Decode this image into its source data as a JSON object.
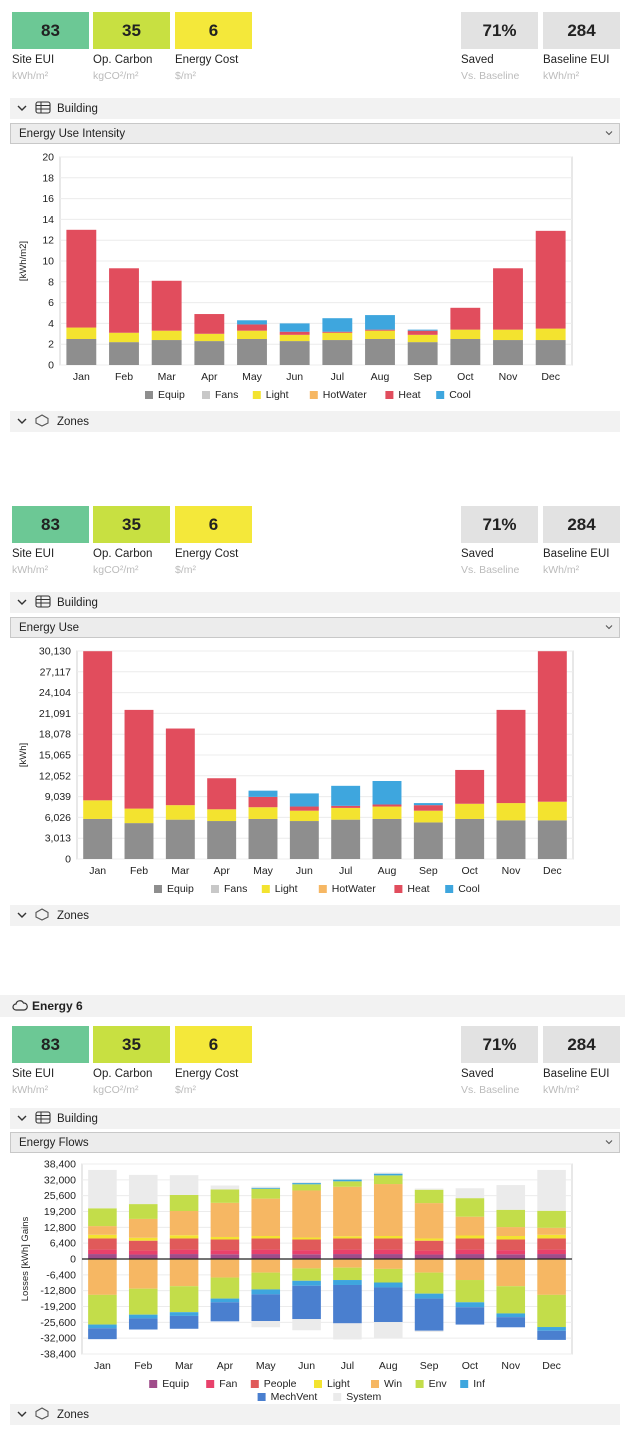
{
  "energy_header": {
    "title": "Energy 6"
  },
  "metrics": [
    {
      "value": "83",
      "label": "Site EUI",
      "unit": "kWh/m²",
      "color": "#6cc895"
    },
    {
      "value": "35",
      "label": "Op. Carbon",
      "unit": "kgCO²/m²",
      "color": "#c8e041"
    },
    {
      "value": "6",
      "label": "Energy Cost",
      "unit": "$/m²",
      "color": "#f4e83a"
    },
    {
      "value": "71%",
      "label": "Saved",
      "unit": "Vs. Baseline",
      "color": "#e2e2e2"
    },
    {
      "value": "284",
      "label": "Baseline EUI",
      "unit": "kWh/m²",
      "color": "#e2e2e2"
    }
  ],
  "building_label": "Building",
  "zones_label": "Zones",
  "colors": {
    "Equip": "#8e8e8e",
    "Fans": "#c8c8c8",
    "Light": "#f3e32f",
    "HotWater": "#f6b763",
    "Heat": "#e14d5d",
    "Cool": "#3ea6de",
    "Fan": "#e8416b",
    "People": "#e05a5a",
    "Win": "#f6b763",
    "Env": "#c3dd4a",
    "Inf": "#3ea6de",
    "MechVent": "#4a7fcf",
    "System": "#ebebeb",
    "EquipFlow": "#a04c8a"
  },
  "panels": [
    {
      "dropdown": "Energy Use Intensity"
    },
    {
      "dropdown": "Energy Use"
    },
    {
      "dropdown": "Energy Flows"
    }
  ],
  "chart_data": [
    {
      "type": "bar",
      "title": "Energy Use Intensity",
      "ylabel": "[kWh/m2]",
      "ylim": [
        0,
        20
      ],
      "yticks": [
        "0",
        "2",
        "4",
        "6",
        "8",
        "10",
        "12",
        "14",
        "16",
        "18",
        "20"
      ],
      "categories": [
        "Jan",
        "Feb",
        "Mar",
        "Apr",
        "May",
        "Jun",
        "Jul",
        "Aug",
        "Sep",
        "Oct",
        "Nov",
        "Dec"
      ],
      "legend": [
        "Equip",
        "Fans",
        "Light",
        "HotWater",
        "Heat",
        "Cool"
      ],
      "series": [
        {
          "name": "Equip",
          "values": [
            2.5,
            2.2,
            2.4,
            2.3,
            2.5,
            2.3,
            2.4,
            2.5,
            2.2,
            2.5,
            2.4,
            2.4
          ]
        },
        {
          "name": "Light",
          "values": [
            1.1,
            0.9,
            0.9,
            0.7,
            0.8,
            0.6,
            0.7,
            0.8,
            0.7,
            0.9,
            1.0,
            1.1
          ]
        },
        {
          "name": "Heat",
          "values": [
            9.4,
            6.2,
            4.8,
            1.9,
            0.6,
            0.3,
            0.1,
            0.1,
            0.4,
            2.1,
            5.9,
            9.4
          ]
        },
        {
          "name": "Cool",
          "values": [
            0,
            0,
            0,
            0,
            0.4,
            0.8,
            1.3,
            1.4,
            0.1,
            0,
            0,
            0
          ]
        }
      ]
    },
    {
      "type": "bar",
      "title": "Energy Use",
      "ylabel": "[kWh]",
      "ylim": [
        0,
        30130
      ],
      "yticks": [
        "0",
        "3,013",
        "6,026",
        "9,039",
        "12,052",
        "15,065",
        "18,078",
        "21,091",
        "24,104",
        "27,117",
        "30,130"
      ],
      "categories": [
        "Jan",
        "Feb",
        "Mar",
        "Apr",
        "May",
        "Jun",
        "Jul",
        "Aug",
        "Sep",
        "Oct",
        "Nov",
        "Dec"
      ],
      "legend": [
        "Equip",
        "Fans",
        "Light",
        "HotWater",
        "Heat",
        "Cool"
      ],
      "series": [
        {
          "name": "Equip",
          "values": [
            5800,
            5200,
            5700,
            5500,
            5800,
            5500,
            5700,
            5800,
            5300,
            5800,
            5600,
            5600
          ]
        },
        {
          "name": "Light",
          "values": [
            2700,
            2100,
            2100,
            1700,
            1700,
            1500,
            1700,
            1800,
            1700,
            2200,
            2500,
            2700
          ]
        },
        {
          "name": "Heat",
          "values": [
            21600,
            14300,
            11100,
            4500,
            1500,
            600,
            300,
            300,
            800,
            4900,
            13500,
            21800
          ]
        },
        {
          "name": "Cool",
          "values": [
            0,
            0,
            0,
            0,
            900,
            1900,
            2900,
            3400,
            300,
            0,
            0,
            0
          ]
        }
      ]
    },
    {
      "type": "bar",
      "title": "Energy Flows",
      "ylabel": "Losses  [kWh]  Gains",
      "ylim": [
        -38400,
        38400
      ],
      "yticks": [
        "-38,400",
        "-32,000",
        "-25,600",
        "-19,200",
        "-12,800",
        "-6,400",
        "0",
        "6,400",
        "12,800",
        "19,200",
        "25,600",
        "32,000",
        "38,400"
      ],
      "categories": [
        "Jan",
        "Feb",
        "Mar",
        "Apr",
        "May",
        "Jun",
        "Jul",
        "Aug",
        "Sep",
        "Oct",
        "Nov",
        "Dec"
      ],
      "legend": [
        "Equip",
        "Fan",
        "People",
        "Light",
        "Win",
        "Env",
        "Inf",
        "MechVent",
        "System"
      ],
      "gains": [
        {
          "name": "Equip",
          "values": [
            2000,
            1800,
            2000,
            1900,
            2000,
            1900,
            2000,
            2000,
            1800,
            2000,
            1900,
            2000
          ]
        },
        {
          "name": "Fan",
          "values": [
            1800,
            1600,
            1800,
            1700,
            1800,
            1700,
            1800,
            1800,
            1600,
            1800,
            1700,
            1800
          ]
        },
        {
          "name": "People",
          "values": [
            4500,
            4000,
            4500,
            4300,
            4500,
            4300,
            4500,
            4500,
            4000,
            4500,
            4300,
            4500
          ]
        },
        {
          "name": "Light",
          "values": [
            1500,
            1200,
            1300,
            1000,
            1000,
            800,
            900,
            1000,
            900,
            1200,
            1400,
            1500
          ]
        },
        {
          "name": "Win",
          "values": [
            3500,
            7600,
            9800,
            13800,
            15100,
            19000,
            20000,
            21000,
            14300,
            7600,
            3600,
            2800
          ]
        },
        {
          "name": "Env",
          "values": [
            7200,
            6000,
            6500,
            5400,
            4000,
            2500,
            2200,
            3500,
            5400,
            7500,
            7000,
            6900
          ]
        },
        {
          "name": "Inf",
          "values": [
            0,
            0,
            0,
            0,
            400,
            500,
            700,
            700,
            0,
            0,
            0,
            0
          ]
        },
        {
          "name": "System",
          "values": [
            15500,
            11800,
            8000,
            1600,
            500,
            500,
            300,
            500,
            500,
            4000,
            10000,
            16500
          ]
        }
      ],
      "losses": [
        {
          "name": "Win",
          "values": [
            -14500,
            -12000,
            -11000,
            -7500,
            -5500,
            -3800,
            -3500,
            -4000,
            -5500,
            -8500,
            -11000,
            -14500
          ]
        },
        {
          "name": "Env",
          "values": [
            -12000,
            -10500,
            -10500,
            -8500,
            -6800,
            -5000,
            -5000,
            -5500,
            -8500,
            -9000,
            -11000,
            -13000
          ]
        },
        {
          "name": "Inf",
          "values": [
            -1500,
            -1500,
            -1500,
            -1500,
            -2000,
            -2000,
            -2000,
            -2000,
            -2000,
            -2000,
            -1500,
            -1500
          ]
        },
        {
          "name": "MechVent",
          "values": [
            -4400,
            -4500,
            -5200,
            -7700,
            -10800,
            -13500,
            -15500,
            -14000,
            -13000,
            -7000,
            -4100,
            -3700
          ]
        },
        {
          "name": "System",
          "values": [
            0,
            0,
            0,
            0,
            -2500,
            -4500,
            -6500,
            -6500,
            -500,
            0,
            0,
            0
          ]
        }
      ]
    }
  ]
}
